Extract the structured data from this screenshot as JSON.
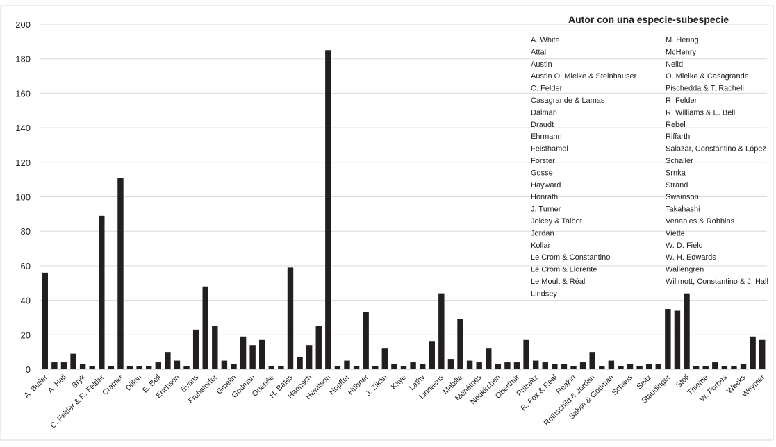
{
  "chart_data": {
    "type": "bar",
    "title": "",
    "xlabel": "",
    "ylabel": "",
    "ylim": [
      0,
      200
    ],
    "yticks": [
      0,
      20,
      40,
      60,
      80,
      100,
      120,
      140,
      160,
      180,
      200
    ],
    "grid": true,
    "bar_color": "#231f20",
    "categories": [
      "A. Butler",
      "",
      "A. Hall",
      "",
      "Bryk",
      "",
      "C. Felder & R. Felder",
      "",
      "Cramer",
      "",
      "Dillon",
      "",
      "E. Bell",
      "",
      "Erichson",
      "",
      "Evans",
      "",
      "Fruhstorfer",
      "",
      "Gmelin",
      "",
      "Godman",
      "",
      "Guenée",
      "",
      "H. Bates",
      "",
      "Haensch",
      "",
      "Hewitson",
      "",
      "Hopffer",
      "",
      "Hübner",
      "",
      "J. Zikán",
      "",
      "Kaye",
      "",
      "Lathy",
      "",
      "Linnaeus",
      "",
      "Mabille",
      "",
      "Ménétriés",
      "",
      "Neukirchen",
      "",
      "Oberthür",
      "",
      "Prittwitz",
      "",
      "R. Fox & Real",
      "",
      "Reakirt",
      "",
      "Rothschild & Jordan",
      "",
      "Salvin & Godman",
      "",
      "Schaus",
      "",
      "Seitz",
      "",
      "Staudinger",
      "",
      "Stoll",
      "",
      "Thieme",
      "",
      "W. Forbes",
      "",
      "Weeks",
      "",
      "Weymer"
    ],
    "values": [
      56,
      4,
      4,
      9,
      3,
      2,
      89,
      2,
      111,
      2,
      2,
      2,
      4,
      10,
      5,
      2,
      23,
      48,
      25,
      5,
      3,
      19,
      14,
      17,
      2,
      2,
      59,
      7,
      14,
      25,
      185,
      2,
      5,
      2,
      33,
      2,
      12,
      3,
      2,
      4,
      3,
      16,
      44,
      6,
      29,
      5,
      4,
      12,
      3,
      4,
      4,
      17,
      5,
      4,
      3,
      3,
      2,
      4,
      10,
      2,
      5,
      2,
      3,
      2,
      3,
      3,
      35,
      34,
      44,
      2,
      2,
      4,
      2,
      2,
      3,
      19,
      17
    ],
    "legend": {
      "title": "Autor con una especie-subespecie",
      "placement": "top-right",
      "col1": [
        "A. White",
        "Attal",
        "Austin",
        "Austin O. Mielke & Steinhauser",
        "C. Felder",
        "Casagrande & Lamas",
        "Dalman",
        "Draudt",
        "Ehrmann",
        "Feisthamel",
        "Forster",
        "Gosse",
        "Hayward",
        "Honrath",
        "J. Turner",
        "Joicey & Talbot",
        "Jordan",
        "Kollar",
        "Le Crom & Constantino",
        "Le Crom & Llorente",
        "Le Moult & Réal",
        "Lindsey"
      ],
      "col2": [
        "M. Hering",
        "McHenry",
        "Neild",
        "O. Mielke & Casagrande",
        "Pischedda & T. Racheli",
        "R. Felder",
        "R. Williams & E. Bell",
        "Rebel",
        "Riffarth",
        "Salazar, Constantino & López",
        "Schaller",
        "Srnka",
        "Strand",
        "Swainson",
        "Takahashi",
        "Venables & Robbins",
        "Viette",
        "W. D. Field",
        "W. H. Edwards",
        "Wallengren",
        "Willmott, Constantino & J. Hall"
      ]
    }
  }
}
